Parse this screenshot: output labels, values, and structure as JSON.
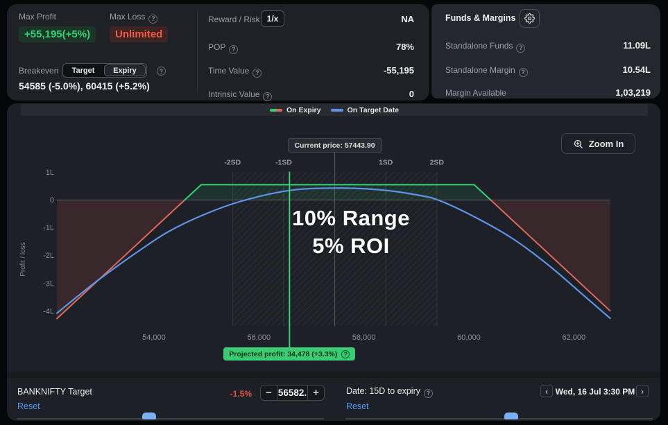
{
  "stats": {
    "max_profit_label": "Max Profit",
    "max_profit_value": "+55,195(+5%)",
    "max_loss_label": "Max Loss",
    "max_loss_value": "Unlimited",
    "breakeven_label": "Breakeven",
    "breakeven_toggle": {
      "options": [
        "Target",
        "Expiry"
      ],
      "selected": "Expiry"
    },
    "breakeven_values": "54585 (-5.0%), 60415 (+5.2%)",
    "reward_risk_label": "Reward / Risk",
    "reward_risk_button": "1/x",
    "reward_risk_value": "NA",
    "pop_label": "POP",
    "pop_value": "78%",
    "time_value_label": "Time Value",
    "time_value_value": "-55,195",
    "intrinsic_label": "Intrinsic Value",
    "intrinsic_value": "0"
  },
  "funds": {
    "title": "Funds & Margins",
    "rows": [
      {
        "label": "Standalone Funds",
        "value": "11.09L",
        "help": true
      },
      {
        "label": "Standalone Margin",
        "value": "10.54L",
        "help": true
      },
      {
        "label": "Margin Available",
        "value": "1,03,219",
        "help": false
      }
    ]
  },
  "legend": {
    "expiry": "On Expiry",
    "target_date": "On Target Date"
  },
  "zoom_button": "Zoom In",
  "colors": {
    "expiry_profit": "#2ed475",
    "expiry_loss": "#e0685a",
    "target_date_line": "#5f93e6",
    "target_marker": "#3dcf75",
    "profit_fill": "rgba(47,212,117,0.10)",
    "loss_fill": "rgba(226,92,80,0.14)",
    "accent_green": "#2ed475",
    "accent_red": "#f05b49",
    "link_blue": "#5795f2"
  },
  "chart_data": {
    "type": "line",
    "title": "",
    "xlabel": "",
    "ylabel": "Profit / loss",
    "x_axis": {
      "min": 52150,
      "max": 62690,
      "ticks": [
        54000,
        56000,
        58000,
        60000,
        62000
      ],
      "tick_labels": [
        "54,000",
        "56,000",
        "58,000",
        "60,000",
        "62,000"
      ]
    },
    "y_axis": {
      "min": -452600,
      "max": 102200,
      "ticks": [
        100000,
        0,
        -100000,
        -200000,
        -300000,
        -400000
      ],
      "tick_labels": [
        "1L",
        "0",
        "-1L",
        "-2L",
        "-3L",
        "-4L"
      ]
    },
    "grid": "vertical-sd-lines-only",
    "legend_position": "top-center",
    "current_price": 57443.9,
    "current_price_label": "Current price: 57443.90",
    "target_price": 56582,
    "projected_profit_label": "Projected profit: 34,478 (+3.3%)",
    "sd_sigma": 973,
    "sd_band": [
      55498,
      59390
    ],
    "sd_lines": [
      {
        "price": 55498,
        "label": "-2SD"
      },
      {
        "price": 56471,
        "label": "-1SD"
      },
      {
        "price": 58417,
        "label": "1SD"
      },
      {
        "price": 59390,
        "label": "2SD"
      }
    ],
    "series": [
      {
        "name": "On Expiry",
        "style": "polyline-green-above-zero-red-below",
        "points": [
          [
            52150,
            -426600
          ],
          [
            54585,
            0
          ],
          [
            54900,
            55195
          ],
          [
            60100,
            55195
          ],
          [
            60415,
            0
          ],
          [
            62690,
            -398600
          ]
        ]
      },
      {
        "name": "On Target Date",
        "style": "smooth-blue",
        "points": [
          [
            52150,
            -407000
          ],
          [
            52920,
            -290500
          ],
          [
            53845,
            -165800
          ],
          [
            54375,
            -103500
          ],
          [
            55035,
            -46100
          ],
          [
            55695,
            -2500
          ],
          [
            56582,
            34478
          ],
          [
            57440,
            42900
          ],
          [
            58270,
            37400
          ],
          [
            59000,
            18700
          ],
          [
            59447,
            -2500
          ],
          [
            60187,
            -68600
          ],
          [
            60850,
            -140900
          ],
          [
            61510,
            -233200
          ],
          [
            62170,
            -340400
          ],
          [
            62690,
            -425200
          ]
        ]
      }
    ],
    "annotation": {
      "line1": "10% Range",
      "line2": "5% ROI"
    }
  },
  "bottom_bar": {
    "instrument_label": "BANKNIFTY Target",
    "reset_label": "Reset",
    "target_percent": "-1.5%",
    "stepper": {
      "minus": "−",
      "value": "56582.",
      "plus": "+"
    },
    "date_label": "Date: 15D to expiry",
    "date_reset_label": "Reset",
    "nav_prev": "‹",
    "nav_next": "›",
    "nav_date": "Wed, 16 Jul 3:30 PM"
  }
}
